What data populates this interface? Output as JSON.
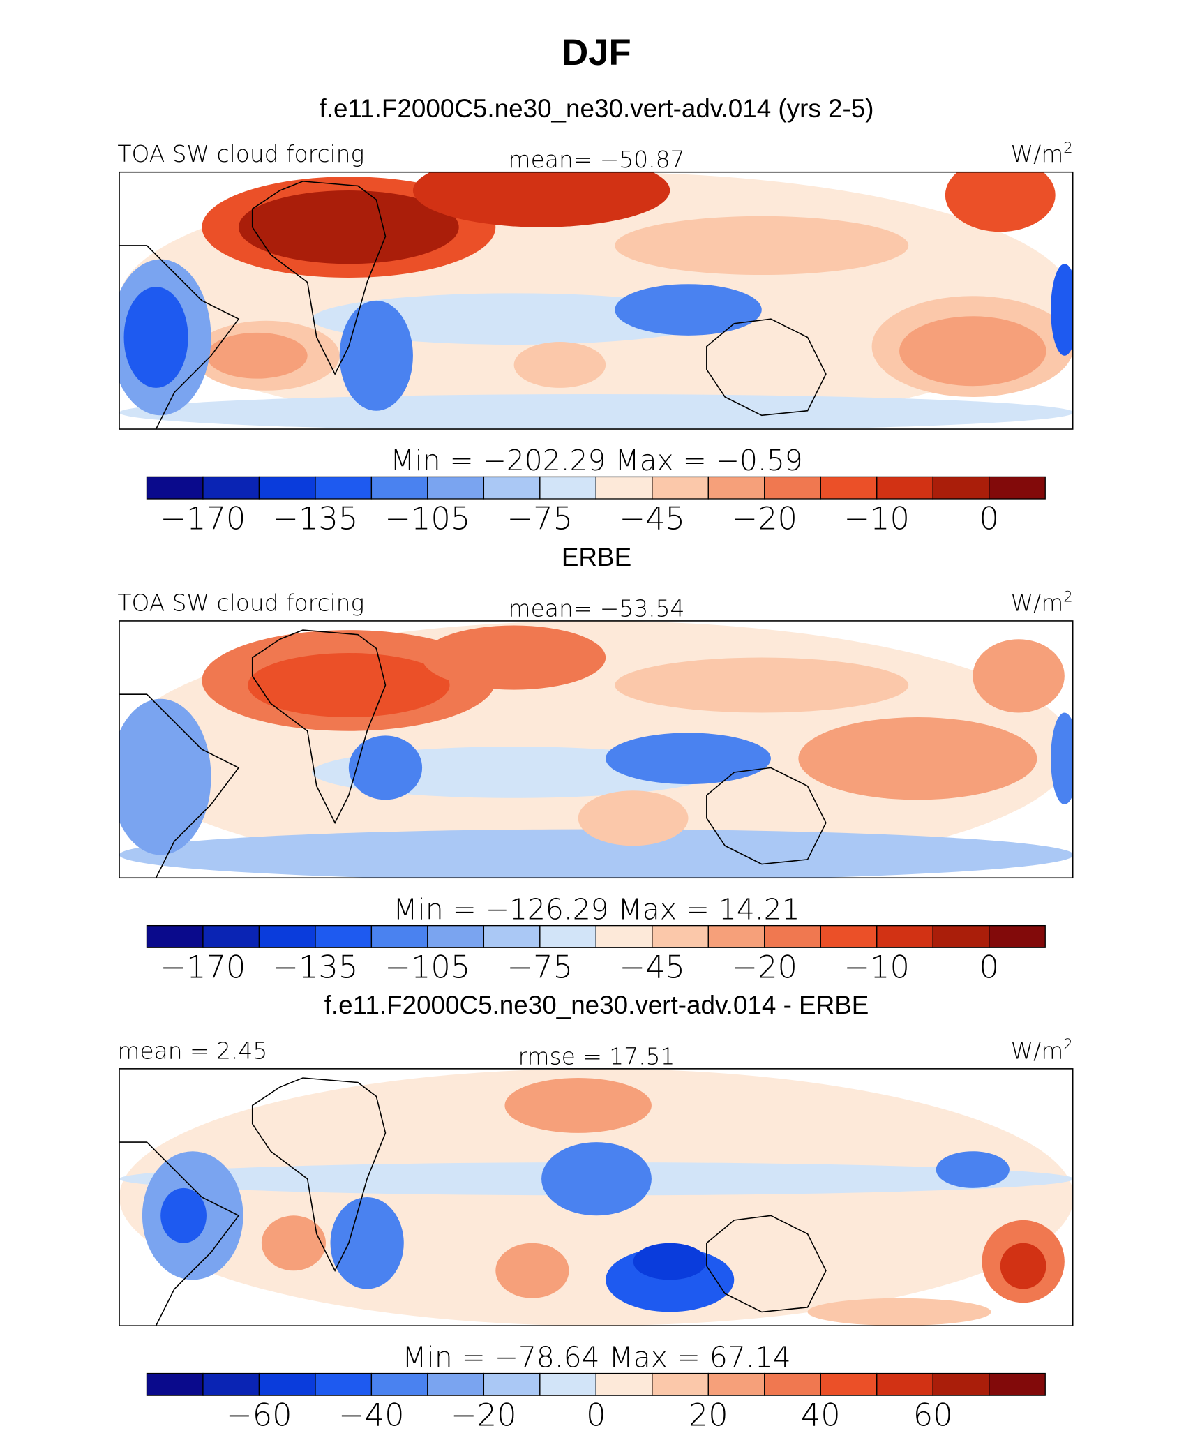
{
  "title": "DJF",
  "panels": [
    {
      "title": "f.e11.F2000C5.ne30_ne30.vert-adv.014 (yrs 2-5)",
      "left": "TOA SW cloud forcing",
      "center": "mean= −50.87",
      "units": "W/m",
      "units_sup": "2",
      "minmax": "Min = −202.29 Max = −0.59",
      "colorbar": {
        "colors": [
          "#0a0a8c",
          "#0a24b4",
          "#0a3cdc",
          "#1e5af0",
          "#4a82f0",
          "#7aa4f0",
          "#aac8f5",
          "#d2e4f8",
          "#fde9d9",
          "#fbc8aa",
          "#f6a07a",
          "#f07850",
          "#eb5028",
          "#d23214",
          "#aa1e0a",
          "#820a0a"
        ],
        "labels": [
          "−170",
          "−135",
          "−105",
          "−75",
          "−45",
          "−20",
          "−10",
          "0"
        ]
      }
    },
    {
      "title": "ERBE",
      "left": "TOA SW cloud forcing",
      "center": "mean= −53.54",
      "units": "W/m",
      "units_sup": "2",
      "minmax": "Min = −126.29 Max = 14.21",
      "colorbar": {
        "colors": [
          "#0a0a8c",
          "#0a24b4",
          "#0a3cdc",
          "#1e5af0",
          "#4a82f0",
          "#7aa4f0",
          "#aac8f5",
          "#d2e4f8",
          "#fde9d9",
          "#fbc8aa",
          "#f6a07a",
          "#f07850",
          "#eb5028",
          "#d23214",
          "#aa1e0a",
          "#820a0a"
        ],
        "labels": [
          "−170",
          "−135",
          "−105",
          "−75",
          "−45",
          "−20",
          "−10",
          "0"
        ]
      }
    },
    {
      "title": "f.e11.F2000C5.ne30_ne30.vert-adv.014 - ERBE",
      "left": "mean = 2.45",
      "center": "rmse = 17.51",
      "units": "W/m",
      "units_sup": "2",
      "minmax": "Min = −78.64 Max = 67.14",
      "colorbar": {
        "colors": [
          "#0a0a8c",
          "#0a24b4",
          "#0a3cdc",
          "#1e5af0",
          "#4a82f0",
          "#7aa4f0",
          "#aac8f5",
          "#d2e4f8",
          "#fde9d9",
          "#fbc8aa",
          "#f6a07a",
          "#f07850",
          "#eb5028",
          "#d23214",
          "#aa1e0a",
          "#820a0a"
        ],
        "labels": [
          "−60",
          "−40",
          "−20",
          "0",
          "20",
          "40",
          "60"
        ]
      }
    }
  ]
}
